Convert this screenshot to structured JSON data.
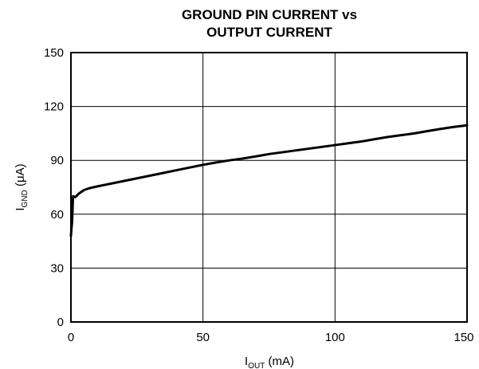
{
  "chart_data": {
    "type": "line",
    "title_lines": [
      "GROUND PIN CURRENT vs",
      "OUTPUT CURRENT"
    ],
    "xlabel": {
      "main": "I",
      "sub": "OUT",
      "unit": " (mA)"
    },
    "ylabel": {
      "main": "I",
      "sub": "GND",
      "unit": " (μA)"
    },
    "xlim": [
      0,
      150
    ],
    "ylim": [
      0,
      150
    ],
    "xticks": [
      0,
      50,
      100,
      150
    ],
    "yticks": [
      0,
      30,
      60,
      90,
      120,
      150
    ],
    "grid": true,
    "series": [
      {
        "x": [
          0,
          0.2,
          0.4,
          0.6,
          0.8,
          1.0,
          1.5,
          2,
          3,
          5,
          7,
          10,
          15,
          20,
          25,
          30,
          35,
          40,
          45,
          50,
          55,
          60,
          65,
          70,
          75,
          80,
          85,
          90,
          95,
          100,
          105,
          110,
          115,
          120,
          125,
          130,
          135,
          140,
          145,
          150
        ],
        "y": [
          48,
          52,
          55,
          62,
          70,
          70,
          69.5,
          70,
          71.5,
          73.5,
          74.5,
          75.5,
          77,
          78.5,
          80,
          81.5,
          83,
          84.5,
          86,
          87.5,
          88.8,
          90,
          91,
          92.2,
          93.5,
          94.5,
          95.5,
          96.5,
          97.5,
          98.5,
          99.5,
          100.5,
          101.8,
          103,
          104,
          105,
          106.3,
          107.5,
          108.6,
          109.5
        ]
      }
    ]
  }
}
